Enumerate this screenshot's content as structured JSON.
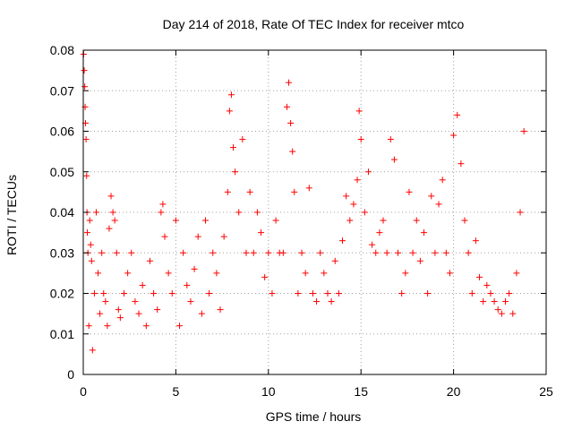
{
  "chart_data": {
    "type": "scatter",
    "title": "Day 214 of 2018, Rate Of TEC Index for receiver mtco",
    "xlabel": "GPS time / hours",
    "ylabel": "ROTI / TECUs",
    "xlim": [
      0,
      25
    ],
    "ylim": [
      0,
      0.08
    ],
    "xticks": [
      0,
      5,
      10,
      15,
      20,
      25
    ],
    "yticks": [
      0,
      0.01,
      0.02,
      0.03,
      0.04,
      0.05,
      0.06,
      0.07,
      0.08
    ],
    "xtick_labels": [
      "0",
      "5",
      "10",
      "15",
      "20",
      "25"
    ],
    "ytick_labels": [
      "0",
      "0.01",
      "0.02",
      "0.03",
      "0.04",
      "0.05",
      "0.06",
      "0.07",
      "0.08"
    ],
    "grid": true,
    "marker": "+",
    "color": "#ff0000",
    "series": [
      {
        "x": [
          0.02,
          0.05,
          0.08,
          0.1,
          0.12,
          0.15,
          0.18,
          0.2,
          0.22,
          0.25,
          0.3,
          0.35,
          0.4,
          0.45,
          0.5,
          0.6,
          0.7,
          0.8,
          0.9,
          1.0,
          1.1,
          1.2,
          1.3,
          1.4,
          1.5,
          1.6,
          1.7,
          1.8,
          1.9,
          2.0,
          2.2,
          2.4,
          2.6,
          2.8,
          3.0,
          3.2,
          3.4,
          3.6,
          3.8,
          4.0,
          4.2,
          4.3,
          4.4,
          4.6,
          4.8,
          5.0,
          5.2,
          5.4,
          5.6,
          5.8,
          6.0,
          6.2,
          6.4,
          6.6,
          6.8,
          7.0,
          7.2,
          7.4,
          7.6,
          7.8,
          7.9,
          8.0,
          8.1,
          8.2,
          8.4,
          8.6,
          8.8,
          9.0,
          9.2,
          9.4,
          9.6,
          9.8,
          10.0,
          10.2,
          10.4,
          10.6,
          10.8,
          11.0,
          11.1,
          11.2,
          11.3,
          11.4,
          11.6,
          11.8,
          12.0,
          12.2,
          12.4,
          12.6,
          12.8,
          13.0,
          13.2,
          13.4,
          13.6,
          13.8,
          14.0,
          14.2,
          14.4,
          14.6,
          14.8,
          14.9,
          15.0,
          15.2,
          15.4,
          15.6,
          15.8,
          16.0,
          16.2,
          16.4,
          16.6,
          16.8,
          17.0,
          17.2,
          17.4,
          17.6,
          17.8,
          18.0,
          18.2,
          18.4,
          18.6,
          18.8,
          19.0,
          19.2,
          19.4,
          19.6,
          19.8,
          20.0,
          20.2,
          20.4,
          20.6,
          20.8,
          21.0,
          21.2,
          21.4,
          21.6,
          21.8,
          22.0,
          22.2,
          22.4,
          22.6,
          22.8,
          23.0,
          23.2,
          23.4,
          23.6,
          23.8
        ],
        "y": [
          0.079,
          0.075,
          0.071,
          0.066,
          0.062,
          0.058,
          0.049,
          0.04,
          0.035,
          0.03,
          0.012,
          0.038,
          0.032,
          0.028,
          0.006,
          0.02,
          0.04,
          0.025,
          0.015,
          0.03,
          0.02,
          0.018,
          0.012,
          0.036,
          0.044,
          0.04,
          0.038,
          0.03,
          0.016,
          0.014,
          0.02,
          0.025,
          0.03,
          0.018,
          0.015,
          0.022,
          0.012,
          0.028,
          0.02,
          0.016,
          0.04,
          0.042,
          0.034,
          0.025,
          0.02,
          0.038,
          0.012,
          0.03,
          0.022,
          0.018,
          0.026,
          0.034,
          0.015,
          0.038,
          0.02,
          0.03,
          0.025,
          0.016,
          0.034,
          0.045,
          0.065,
          0.069,
          0.056,
          0.05,
          0.04,
          0.058,
          0.03,
          0.045,
          0.03,
          0.04,
          0.035,
          0.024,
          0.03,
          0.02,
          0.038,
          0.03,
          0.03,
          0.066,
          0.072,
          0.062,
          0.055,
          0.045,
          0.02,
          0.03,
          0.025,
          0.046,
          0.02,
          0.018,
          0.03,
          0.025,
          0.02,
          0.018,
          0.028,
          0.02,
          0.033,
          0.044,
          0.038,
          0.042,
          0.048,
          0.065,
          0.058,
          0.04,
          0.05,
          0.032,
          0.03,
          0.035,
          0.038,
          0.03,
          0.058,
          0.053,
          0.03,
          0.02,
          0.025,
          0.045,
          0.03,
          0.038,
          0.028,
          0.035,
          0.02,
          0.044,
          0.03,
          0.042,
          0.048,
          0.03,
          0.025,
          0.059,
          0.064,
          0.052,
          0.038,
          0.03,
          0.02,
          0.033,
          0.024,
          0.018,
          0.022,
          0.02,
          0.018,
          0.016,
          0.015,
          0.018,
          0.02,
          0.015,
          0.025,
          0.04,
          0.06
        ]
      }
    ]
  }
}
